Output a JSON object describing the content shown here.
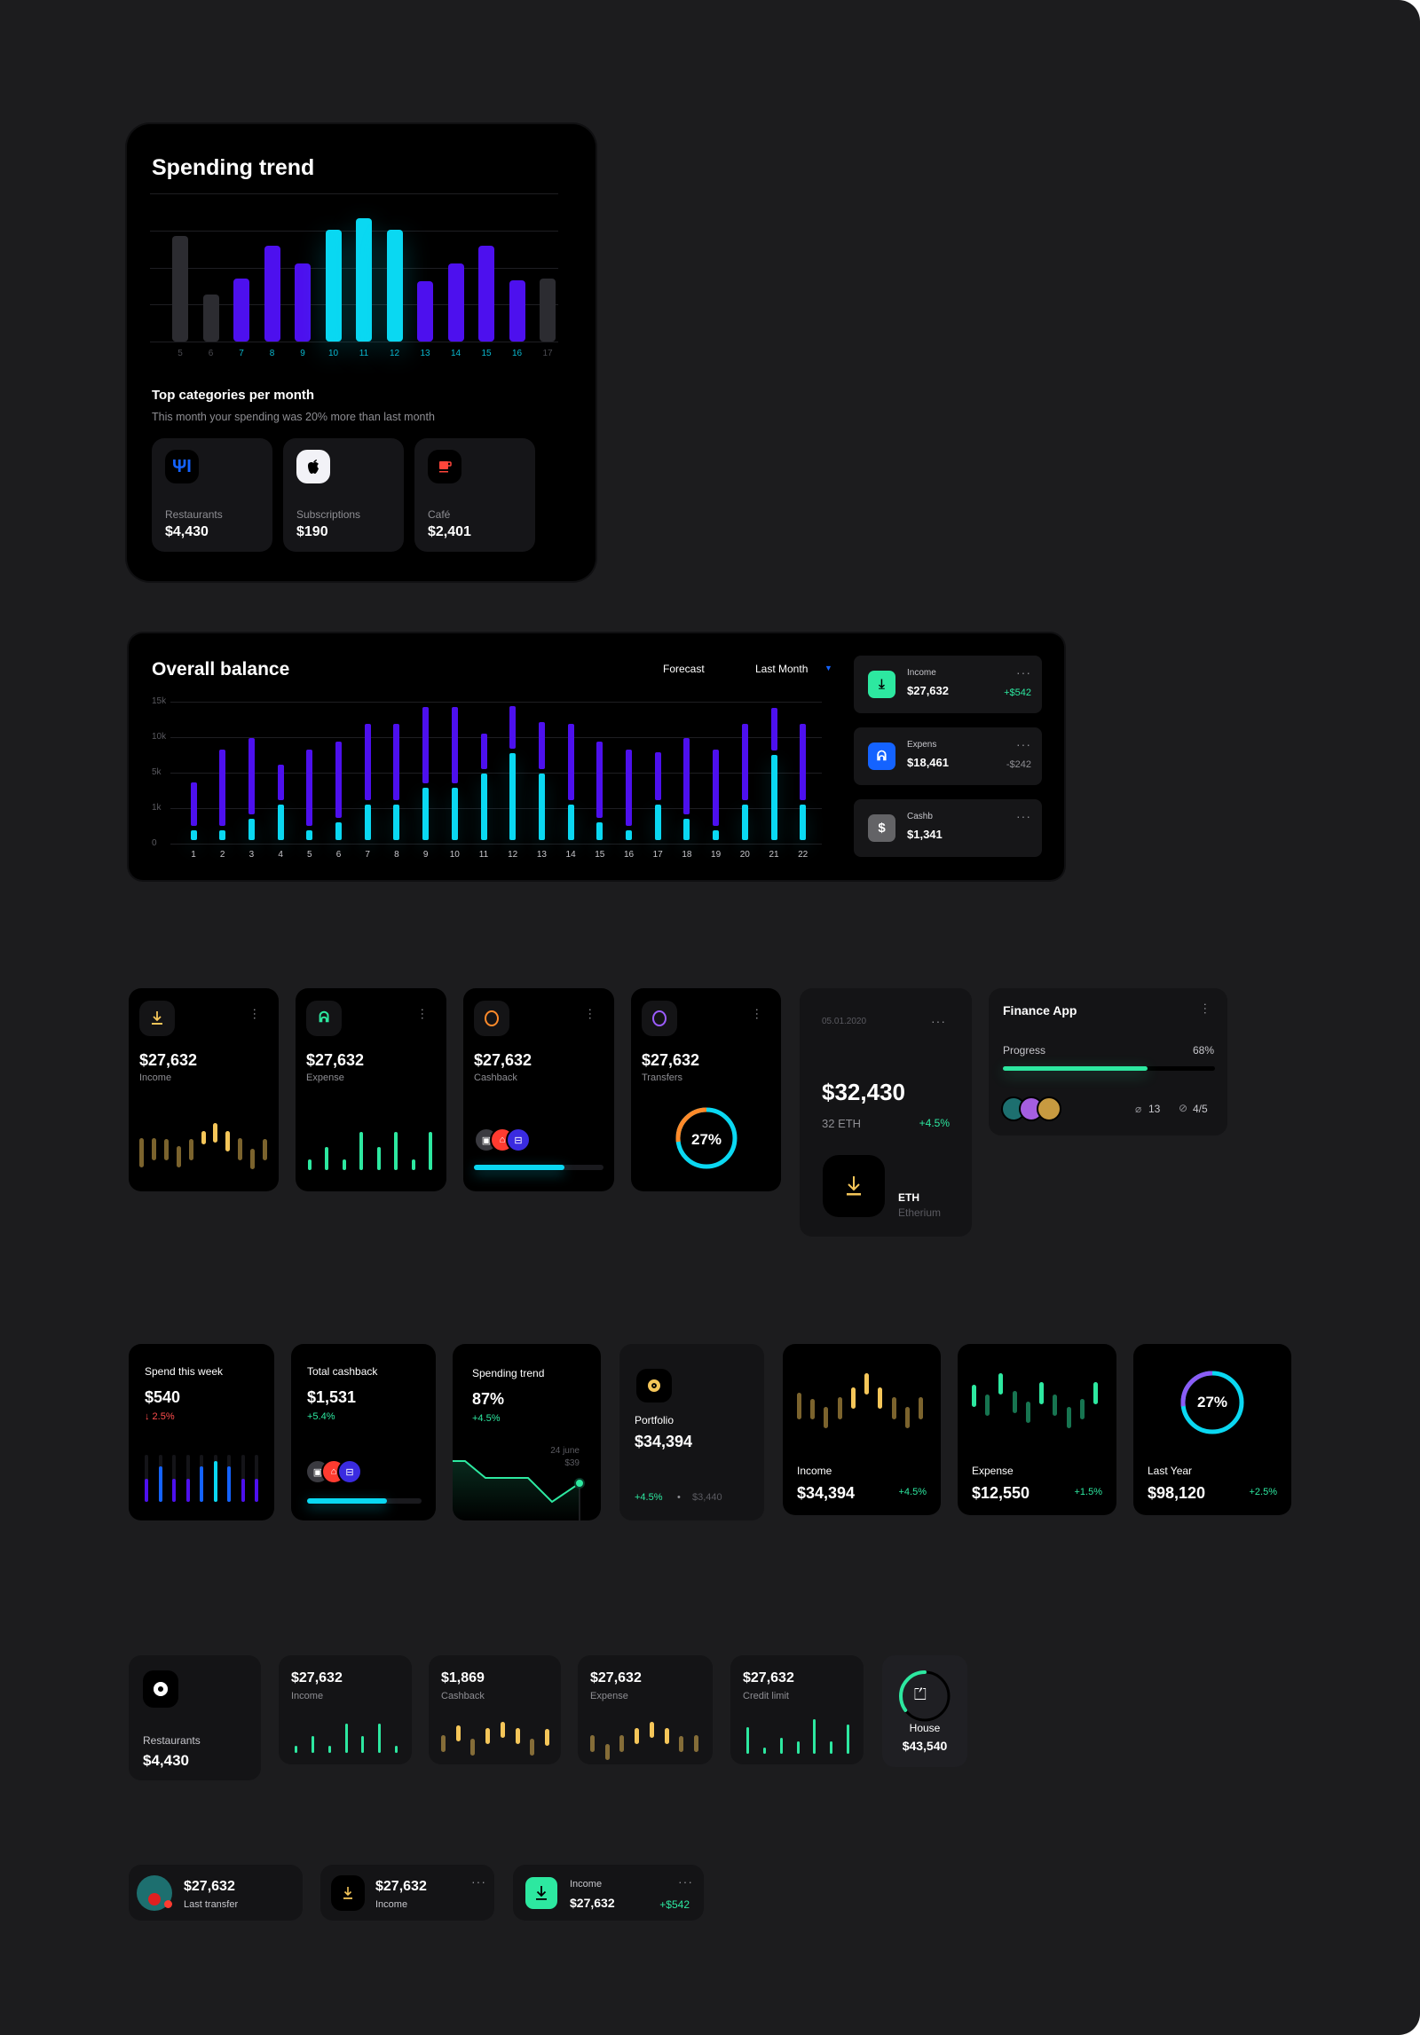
{
  "colors": {
    "purple": "#4d10ee",
    "cyan": "#0ad8f2",
    "gray": "#2c2c31",
    "green": "#2de8a0",
    "gold": "#f5c659",
    "red": "#ff4d4d",
    "blue": "#1463ff"
  },
  "spending_trend": {
    "title": "Spending trend",
    "bars": [
      {
        "label": "5",
        "value": 2.84,
        "tone": "gray"
      },
      {
        "label": "6",
        "value": 1.26,
        "tone": "gray"
      },
      {
        "label": "7",
        "value": 1.71,
        "tone": "purple"
      },
      {
        "label": "8",
        "value": 2.58,
        "tone": "purple"
      },
      {
        "label": "9",
        "value": 2.1,
        "tone": "purple"
      },
      {
        "label": "10",
        "value": 3.02,
        "tone": "cyan"
      },
      {
        "label": "11",
        "value": 3.34,
        "tone": "cyan"
      },
      {
        "label": "12",
        "value": 3.02,
        "tone": "cyan"
      },
      {
        "label": "13",
        "value": 1.62,
        "tone": "purple"
      },
      {
        "label": "14",
        "value": 2.1,
        "tone": "purple"
      },
      {
        "label": "15",
        "value": 2.58,
        "tone": "purple"
      },
      {
        "label": "16",
        "value": 1.66,
        "tone": "purple"
      },
      {
        "label": "17",
        "value": 1.71,
        "tone": "gray"
      }
    ],
    "top_title": "Top categories per month",
    "subtitle": "This month your spending was 20% more than last month",
    "categories": [
      {
        "label": "Restaurants",
        "value": "$4,430",
        "icon": "fork-knife-icon"
      },
      {
        "label": "Subscriptions",
        "value": "$190",
        "icon": "apple-icon"
      },
      {
        "label": "Café",
        "value": "$2,401",
        "icon": "coffee-cup-icon"
      }
    ]
  },
  "overall_balance": {
    "title": "Overall balance",
    "forecast": "Forecast",
    "period": "Last Month",
    "y_ticks": [
      "0",
      "1k",
      "5k",
      "10k",
      "15k"
    ],
    "bars": [
      {
        "day": "1",
        "income": 0.38,
        "expense": 1.72
      },
      {
        "day": "2",
        "income": 0.38,
        "expense": 2.65
      },
      {
        "day": "3",
        "income": 0.69,
        "expense": 2.98
      },
      {
        "day": "4",
        "income": 1.1,
        "expense": 2.23
      },
      {
        "day": "5",
        "income": 0.38,
        "expense": 2.65
      },
      {
        "day": "6",
        "income": 0.61,
        "expense": 2.88
      },
      {
        "day": "7",
        "income": 1.1,
        "expense": 3.38
      },
      {
        "day": "8",
        "income": 1.1,
        "expense": 3.38
      },
      {
        "day": "9",
        "income": 1.58,
        "expense": 3.85
      },
      {
        "day": "10",
        "income": 1.58,
        "expense": 3.85
      },
      {
        "day": "11",
        "income": 1.97,
        "expense": 3.1
      },
      {
        "day": "12",
        "income": 2.54,
        "expense": 3.88
      },
      {
        "day": "13",
        "income": 1.97,
        "expense": 3.42
      },
      {
        "day": "14",
        "income": 1.1,
        "expense": 3.38
      },
      {
        "day": "15",
        "income": 0.61,
        "expense": 2.88
      },
      {
        "day": "16",
        "income": 0.38,
        "expense": 2.65
      },
      {
        "day": "17",
        "income": 1.1,
        "expense": 2.57
      },
      {
        "day": "18",
        "income": 0.69,
        "expense": 2.98
      },
      {
        "day": "19",
        "income": 0.38,
        "expense": 2.65
      },
      {
        "day": "20",
        "income": 1.1,
        "expense": 3.38
      },
      {
        "day": "21",
        "income": 2.49,
        "expense": 3.83
      },
      {
        "day": "22",
        "income": 1.1,
        "expense": 3.38
      }
    ],
    "side": [
      {
        "label": "Income",
        "value": "$27,632",
        "delta": "+$542",
        "icon": "download-icon"
      },
      {
        "label": "Expens",
        "value": "$18,461",
        "delta": "-$242",
        "icon": "hand-coins-icon"
      },
      {
        "label": "Cashb",
        "value": "$1,341",
        "delta": "",
        "icon": "cashback-icon"
      }
    ],
    "more": "···"
  },
  "row3": {
    "cards": [
      {
        "value": "$27,632",
        "label": "Income",
        "icon": "download-icon"
      },
      {
        "value": "$27,632",
        "label": "Expense",
        "icon": "hand-coins-icon"
      },
      {
        "value": "$27,632",
        "label": "Cashback",
        "icon": "coin-icon"
      },
      {
        "value": "$27,632",
        "label": "Transfers",
        "icon": "coin-icon"
      }
    ],
    "income_candles": [
      [
        0.03,
        0.66,
        0
      ],
      [
        0.19,
        0.66,
        0
      ],
      [
        0.19,
        0.64,
        0
      ],
      [
        0.03,
        0.5,
        0
      ],
      [
        0.19,
        0.64,
        0
      ],
      [
        0.53,
        0.81,
        1
      ],
      [
        0.56,
        0.98,
        1
      ],
      [
        0.38,
        0.81,
        1
      ],
      [
        0.19,
        0.66,
        0
      ],
      [
        0,
        0.44,
        0
      ],
      [
        0.19,
        0.64,
        0
      ]
    ],
    "expense_bars": [
      0.27,
      0.59,
      0.27,
      0.98,
      0.59,
      0.98,
      0.27,
      0.98
    ],
    "cashback_progress": 0.7,
    "transfers_percent": "27%",
    "transfers_fraction": 0.27,
    "eth": {
      "date": "05.01.2020",
      "value": "$32,430",
      "amount": "32 ETH",
      "delta": "+4.5%",
      "symbol": "ETH",
      "name": "Etherium"
    },
    "finance": {
      "title": "Finance App",
      "progress_label": "Progress",
      "progress_text": "68%",
      "progress": 0.68,
      "attachments": "13",
      "tasks": "4/5"
    }
  },
  "row4": {
    "spend": {
      "label": "Spend this week",
      "value": "$540",
      "delta": "↓ 2.5%",
      "bars": [
        [
          0.5,
          "purple"
        ],
        [
          0.75,
          "blue"
        ],
        [
          0.5,
          "purple"
        ],
        [
          0.5,
          "purple"
        ],
        [
          0.75,
          "blue"
        ],
        [
          0.87,
          "cyan"
        ],
        [
          0.75,
          "blue"
        ],
        [
          0.5,
          "purple"
        ],
        [
          0.5,
          "purple"
        ]
      ]
    },
    "cashback": {
      "label": "Total cashback",
      "value": "$1,531",
      "delta": "+5.4%",
      "progress": 0.7
    },
    "trend": {
      "label": "Spending trend",
      "value": "87%",
      "delta": "+4.5%",
      "date": "24 june",
      "point": "$39"
    },
    "portfolio": {
      "label": "Portfolio",
      "value": "$34,394",
      "delta": "+4.5%",
      "sep": "•",
      "prev": "$3,440"
    },
    "income": {
      "label": "Income",
      "value": "$34,394",
      "delta": "+4.5%",
      "candles": [
        [
          0.16,
          0.64,
          0
        ],
        [
          0.16,
          0.54,
          0
        ],
        [
          0,
          0.39,
          0
        ],
        [
          0.16,
          0.56,
          0
        ],
        [
          0.36,
          0.75,
          1
        ],
        [
          0.61,
          1,
          1
        ],
        [
          0.36,
          0.75,
          1
        ],
        [
          0.16,
          0.56,
          0
        ],
        [
          0,
          0.39,
          0
        ],
        [
          0.16,
          0.56,
          0
        ]
      ]
    },
    "expense": {
      "label": "Expense",
      "value": "$12,550",
      "delta": "+1.5%",
      "candles": [
        [
          0.39,
          0.79,
          1
        ],
        [
          0.22,
          0.61,
          0
        ],
        [
          0.61,
          1,
          1
        ],
        [
          0.28,
          0.67,
          0
        ],
        [
          0.1,
          0.49,
          0
        ],
        [
          0.44,
          0.84,
          1
        ],
        [
          0.22,
          0.61,
          0
        ],
        [
          0,
          0.39,
          0
        ],
        [
          0.16,
          0.54,
          0
        ],
        [
          0.44,
          0.84,
          1
        ]
      ]
    },
    "year": {
      "label": "Last Year",
      "value": "$98,120",
      "delta": "+2.5%",
      "percent": "27%",
      "fraction": 0.27
    }
  },
  "row5": {
    "restaurants": {
      "label": "Restaurants",
      "value": "$4,430"
    },
    "income": {
      "value": "$27,632",
      "label": "Income",
      "bars": [
        0.25,
        0.55,
        0.25,
        0.97,
        0.55,
        0.97,
        0.25
      ]
    },
    "cashback": {
      "value": "$1,869",
      "label": "Cashback",
      "candles": [
        [
          0.18,
          0.63,
          0
        ],
        [
          0.46,
          0.9,
          1
        ],
        [
          0.08,
          0.54,
          0
        ],
        [
          0.38,
          0.82,
          1
        ],
        [
          0.55,
          1,
          1
        ],
        [
          0.38,
          0.82,
          1
        ],
        [
          0.08,
          0.54,
          0
        ],
        [
          0.35,
          0.81,
          1
        ]
      ]
    },
    "expense": {
      "value": "$27,632",
      "label": "Expense",
      "candles": [
        [
          0.22,
          0.65,
          0
        ],
        [
          0,
          0.43,
          0
        ],
        [
          0.22,
          0.65,
          0
        ],
        [
          0.41,
          0.83,
          1
        ],
        [
          0.57,
          1,
          1
        ],
        [
          0.41,
          0.83,
          1
        ],
        [
          0.2,
          0.62,
          0
        ],
        [
          0.22,
          0.65,
          0
        ]
      ]
    },
    "credit": {
      "value": "$27,632",
      "label": "Credit limit",
      "bars": [
        0.77,
        0.17,
        0.46,
        0.35,
        1,
        0.35,
        0.84
      ]
    },
    "house": {
      "label": "House",
      "value": "$43,540",
      "fraction": 0.35
    }
  },
  "row6": {
    "transfer": {
      "value": "$27,632",
      "label": "Last transfer"
    },
    "income": {
      "value": "$27,632",
      "label": "Income"
    },
    "income2": {
      "label": "Income",
      "value": "$27,632",
      "delta": "+$542"
    }
  }
}
